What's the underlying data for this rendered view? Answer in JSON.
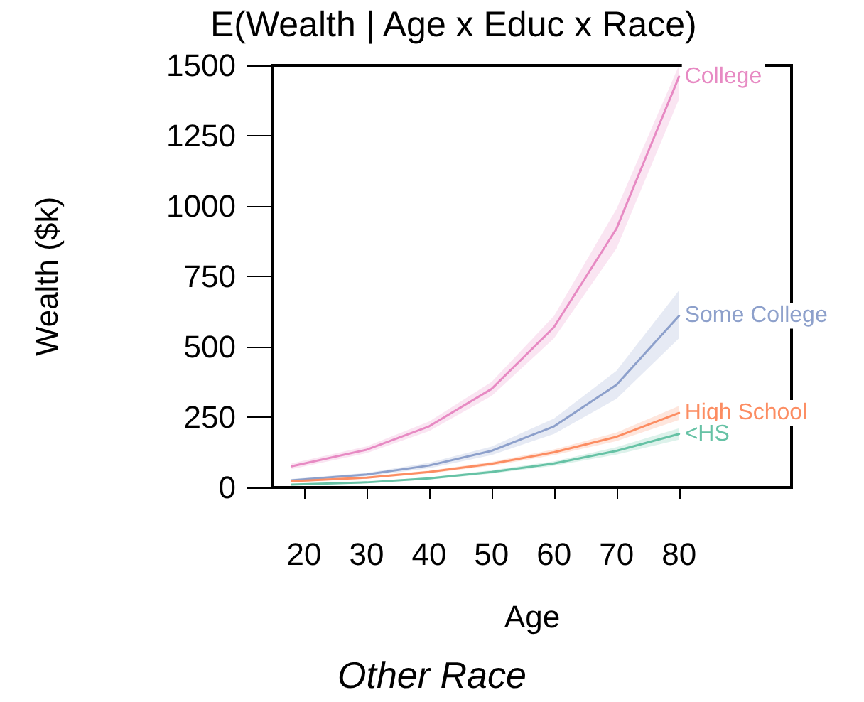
{
  "chart_data": {
    "type": "line",
    "title": "E(Wealth | Age x Educ x Race)",
    "xlabel": "Age",
    "ylabel": "Wealth ($k)",
    "annotations": [
      "Other Race"
    ],
    "x": [
      18,
      30,
      40,
      50,
      60,
      70,
      80
    ],
    "series": [
      {
        "name": "College",
        "color": "#e78ac3",
        "values": [
          75,
          134,
          217,
          350,
          570,
          920,
          1460
        ],
        "lower": [
          65,
          122,
          200,
          325,
          530,
          850,
          1380
        ],
        "upper": [
          85,
          146,
          234,
          375,
          610,
          990,
          1500
        ]
      },
      {
        "name": "Some College",
        "color": "#8da0cb",
        "values": [
          25,
          46,
          78,
          130,
          217,
          365,
          610
        ],
        "lower": [
          20,
          40,
          68,
          115,
          190,
          315,
          530
        ],
        "upper": [
          30,
          52,
          88,
          145,
          245,
          415,
          700
        ]
      },
      {
        "name": "High School",
        "color": "#fc8d62",
        "values": [
          22,
          35,
          55,
          84,
          125,
          180,
          265
        ],
        "lower": [
          19,
          31,
          50,
          77,
          115,
          165,
          240
        ],
        "upper": [
          25,
          39,
          60,
          91,
          135,
          195,
          290
        ]
      },
      {
        "name": "<HS",
        "color": "#66c2a5",
        "values": [
          10,
          18,
          32,
          55,
          85,
          130,
          190
        ],
        "lower": [
          8,
          15,
          28,
          49,
          77,
          117,
          170
        ],
        "upper": [
          12,
          21,
          36,
          61,
          93,
          143,
          210
        ]
      }
    ],
    "xlim": [
      15,
      98
    ],
    "xticks": [
      20,
      30,
      40,
      50,
      60,
      70,
      80
    ],
    "ylim": [
      0,
      1500
    ],
    "yticks": [
      0,
      250,
      500,
      750,
      1000,
      1250,
      1500
    ],
    "grid": false,
    "legend": false,
    "marker": "none",
    "line_style": "solid"
  }
}
